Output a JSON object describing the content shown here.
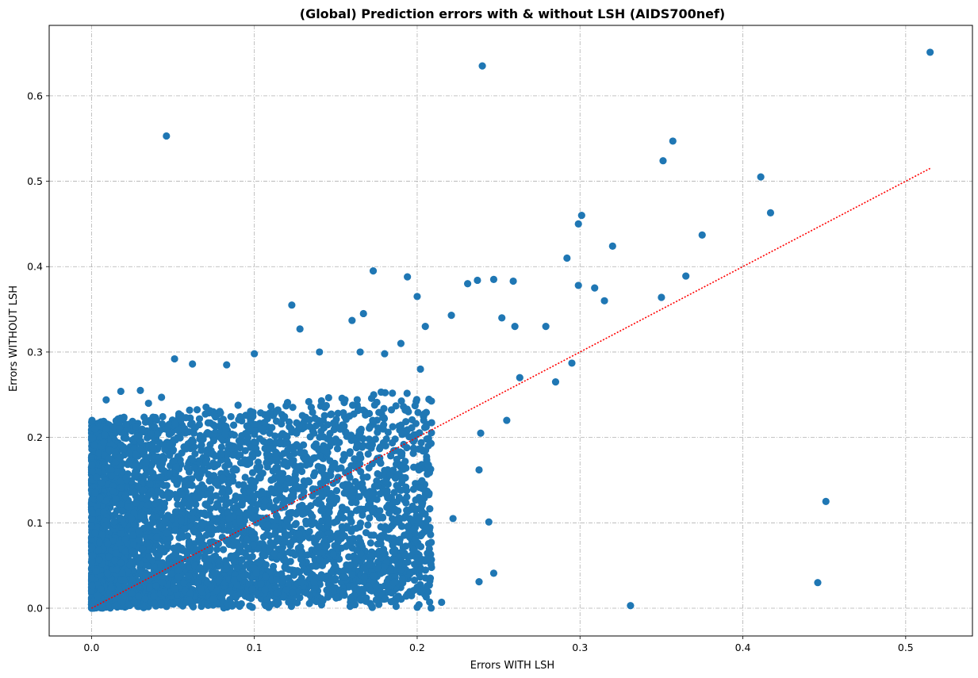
{
  "chart_data": {
    "type": "scatter",
    "title": "(Global) Prediction errors with & without LSH (AIDS700nef)",
    "xlabel": "Errors WITH LSH",
    "ylabel": "Errors WITHOUT LSH",
    "xlim": [
      -0.026,
      0.541
    ],
    "ylim": [
      -0.0325,
      0.6825
    ],
    "xticks": [
      0.0,
      0.1,
      0.2,
      0.3,
      0.4,
      0.5
    ],
    "xtick_labels": [
      "0.0",
      "0.1",
      "0.2",
      "0.3",
      "0.4",
      "0.5"
    ],
    "yticks": [
      0.0,
      0.1,
      0.2,
      0.3,
      0.4,
      0.5,
      0.6
    ],
    "ytick_labels": [
      "0.0",
      "0.1",
      "0.2",
      "0.3",
      "0.4",
      "0.5",
      "0.6"
    ],
    "grid": true,
    "series": [
      {
        "color": "#1f77b4",
        "x": [
          0.515,
          0.24,
          0.046,
          0.357,
          0.351,
          0.411,
          0.417,
          0.301,
          0.299,
          0.32,
          0.375,
          0.365,
          0.292,
          0.173,
          0.194,
          0.231,
          0.237,
          0.247,
          0.259,
          0.123,
          0.2,
          0.299,
          0.309,
          0.315,
          0.35,
          0.295,
          0.451,
          0.446,
          0.331,
          0.244,
          0.247,
          0.238,
          0.239,
          0.255,
          0.285,
          0.263,
          0.167,
          0.165,
          0.205,
          0.26,
          0.252,
          0.279,
          0.202,
          0.221,
          0.204,
          0.222,
          0.2,
          0.238,
          0.19,
          0.215,
          0.172,
          0.18,
          0.062,
          0.051,
          0.083,
          0.1,
          0.009,
          0.128,
          0.018,
          0.043,
          0.002,
          0.035,
          0.03,
          0.008,
          0.19,
          0.16,
          0.14
        ],
        "y": [
          0.651,
          0.635,
          0.553,
          0.547,
          0.524,
          0.505,
          0.463,
          0.46,
          0.45,
          0.424,
          0.437,
          0.389,
          0.41,
          0.395,
          0.388,
          0.38,
          0.384,
          0.385,
          0.383,
          0.355,
          0.365,
          0.378,
          0.375,
          0.36,
          0.364,
          0.287,
          0.125,
          0.03,
          0.003,
          0.101,
          0.041,
          0.031,
          0.205,
          0.22,
          0.265,
          0.27,
          0.345,
          0.3,
          0.33,
          0.33,
          0.34,
          0.33,
          0.28,
          0.343,
          0.22,
          0.105,
          0.001,
          0.162,
          0.138,
          0.007,
          0.003,
          0.298,
          0.286,
          0.292,
          0.285,
          0.298,
          0.244,
          0.327,
          0.254,
          0.247,
          0.21,
          0.24,
          0.255,
          0.203,
          0.31,
          0.337,
          0.3
        ]
      },
      {
        "color": "#1f77b4",
        "cloud": {
          "count": 4500,
          "x_range": [
            0.0,
            0.22
          ],
          "y_range": [
            0.0,
            0.26
          ]
        }
      }
    ],
    "reference_line": {
      "style": "dotted",
      "color": "#ff0000",
      "x": [
        0.0,
        0.515
      ],
      "y": [
        0.0,
        0.515
      ]
    }
  }
}
